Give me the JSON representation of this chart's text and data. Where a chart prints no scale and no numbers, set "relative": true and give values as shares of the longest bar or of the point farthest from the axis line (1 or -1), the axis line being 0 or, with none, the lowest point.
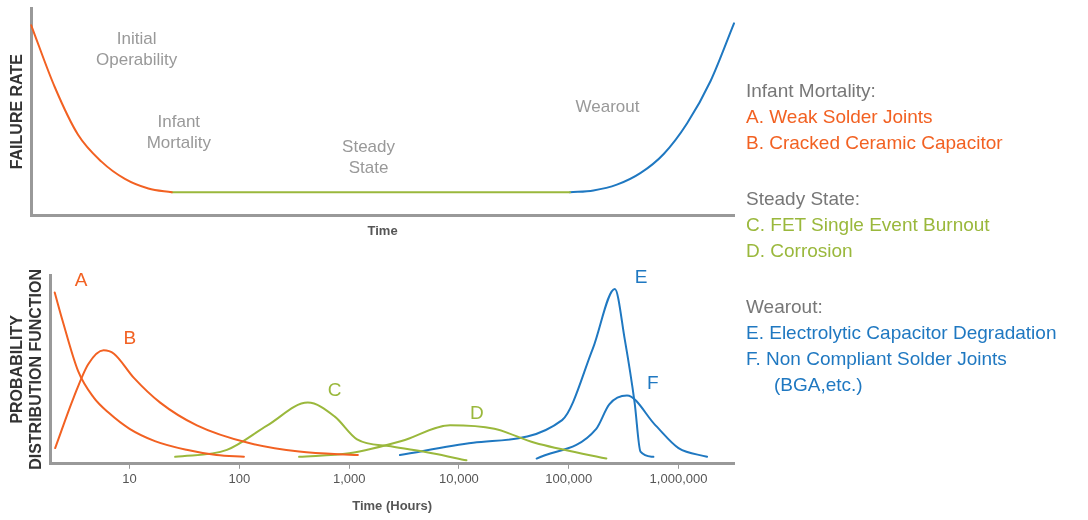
{
  "chart_data": [
    {
      "type": "line",
      "relative": true,
      "xlabel": "Time",
      "ylabel": "FAILURE RATE",
      "grid": false,
      "legend": false,
      "marker": "none",
      "line_style": "solid",
      "tick_labels": false,
      "categories": [
        null,
        null,
        null,
        null,
        null,
        null,
        null,
        null,
        null,
        null,
        null,
        null,
        null,
        null,
        null,
        null,
        null,
        null,
        null,
        null,
        null,
        null,
        null,
        null,
        null,
        null,
        null,
        null,
        null,
        null,
        null
      ],
      "series": [
        {
          "color": "#f26122",
          "values": [
            0.99,
            0.67,
            0.42,
            0.28,
            0.19,
            0.14,
            0.12,
            null,
            null,
            null,
            null,
            null,
            null,
            null,
            null,
            null,
            null,
            null,
            null,
            null,
            null,
            null,
            null,
            null,
            null,
            null,
            null,
            null,
            null,
            null,
            null
          ]
        },
        {
          "color": "#9ab83c",
          "values": [
            null,
            null,
            null,
            null,
            null,
            null,
            0.12,
            0.12,
            0.12,
            0.12,
            0.12,
            0.12,
            0.12,
            0.12,
            0.12,
            0.12,
            0.12,
            0.12,
            0.12,
            0.12,
            0.12,
            0.12,
            0.12,
            0.12,
            null,
            null,
            null,
            null,
            null,
            null,
            null
          ]
        },
        {
          "color": "#1f78c1",
          "values": [
            null,
            null,
            null,
            null,
            null,
            null,
            null,
            null,
            null,
            null,
            null,
            null,
            null,
            null,
            null,
            null,
            null,
            null,
            null,
            null,
            null,
            null,
            null,
            0.12,
            0.13,
            0.16,
            0.22,
            0.32,
            0.48,
            0.7,
            1.0
          ]
        }
      ],
      "annotations": [
        "Initial Operability",
        "Infant Mortality",
        "Steady State",
        "Wearout"
      ]
    },
    {
      "type": "line",
      "relative": true,
      "log": "x",
      "xlabel": "Time (Hours)",
      "ylabel": "PROBABILITY DISTRIBUTION FUNCTION",
      "grid": false,
      "legend": false,
      "marker": "none",
      "line_style": "solid",
      "tick_labels": "x",
      "xlim": [
        1.9,
        3200000
      ],
      "xticks": [
        10,
        100,
        {
          "value": 1000,
          "label": "1,000"
        },
        {
          "value": 10000,
          "label": "10,000"
        },
        {
          "value": 100000,
          "label": "100,000"
        },
        {
          "value": 1000000,
          "label": "1,000,000"
        }
      ],
      "series": [
        {
          "name": "A",
          "color": "#f26122",
          "x": [
            2.08,
            2.45,
            3.4,
            4.7,
            6.5,
            10,
            17,
            33,
            62,
            110
          ],
          "values": [
            0.98,
            0.82,
            0.53,
            0.38,
            0.29,
            0.2,
            0.13,
            0.08,
            0.05,
            0.04
          ]
        },
        {
          "name": "B",
          "color": "#f26122",
          "x": [
            2.1,
            3.1,
            4.2,
            5.8,
            7.2,
            11,
            19,
            41,
            120,
            350,
            1200
          ],
          "values": [
            0.09,
            0.38,
            0.57,
            0.65,
            0.63,
            0.49,
            0.35,
            0.22,
            0.12,
            0.07,
            0.05
          ]
        },
        {
          "name": "C",
          "color": "#9ab83c",
          "x": [
            26,
            77,
            180,
            420,
            740,
            1180,
            2400,
            5700,
            11700
          ],
          "values": [
            0.04,
            0.08,
            0.22,
            0.35,
            0.27,
            0.14,
            0.1,
            0.06,
            0.02
          ]
        },
        {
          "name": "D",
          "color": "#9ab83c",
          "x": [
            350,
            1000,
            3000,
            8300,
            21000,
            49000,
            220000
          ],
          "values": [
            0.04,
            0.06,
            0.13,
            0.22,
            0.2,
            0.12,
            0.03
          ]
        },
        {
          "name": "E",
          "color": "#1f78c1",
          "x": [
            2900,
            13500,
            87000,
            166000,
            263000,
            324000,
            398000,
            450000,
            590000
          ],
          "values": [
            0.05,
            0.12,
            0.25,
            0.66,
            1.0,
            0.71,
            0.35,
            0.07,
            0.04
          ]
        },
        {
          "name": "F",
          "color": "#1f78c1",
          "x": [
            51000,
            178000,
            234000,
            339000,
            617000,
            1000000,
            1820000
          ],
          "values": [
            0.03,
            0.2,
            0.34,
            0.39,
            0.22,
            0.09,
            0.04
          ]
        }
      ],
      "annotations": [
        "Infant Mortality:",
        "A.  Weak Solder Joints",
        "B.  Cracked Ceramic Capacitor",
        "Steady State:",
        "C.  FET Single Event Burnout",
        "D.  Corrosion",
        "Wearout:",
        "E.  Electrolytic Capacitor Degradation",
        "F.  Non Compliant Solder Joints (BGA,etc.)"
      ]
    }
  ]
}
